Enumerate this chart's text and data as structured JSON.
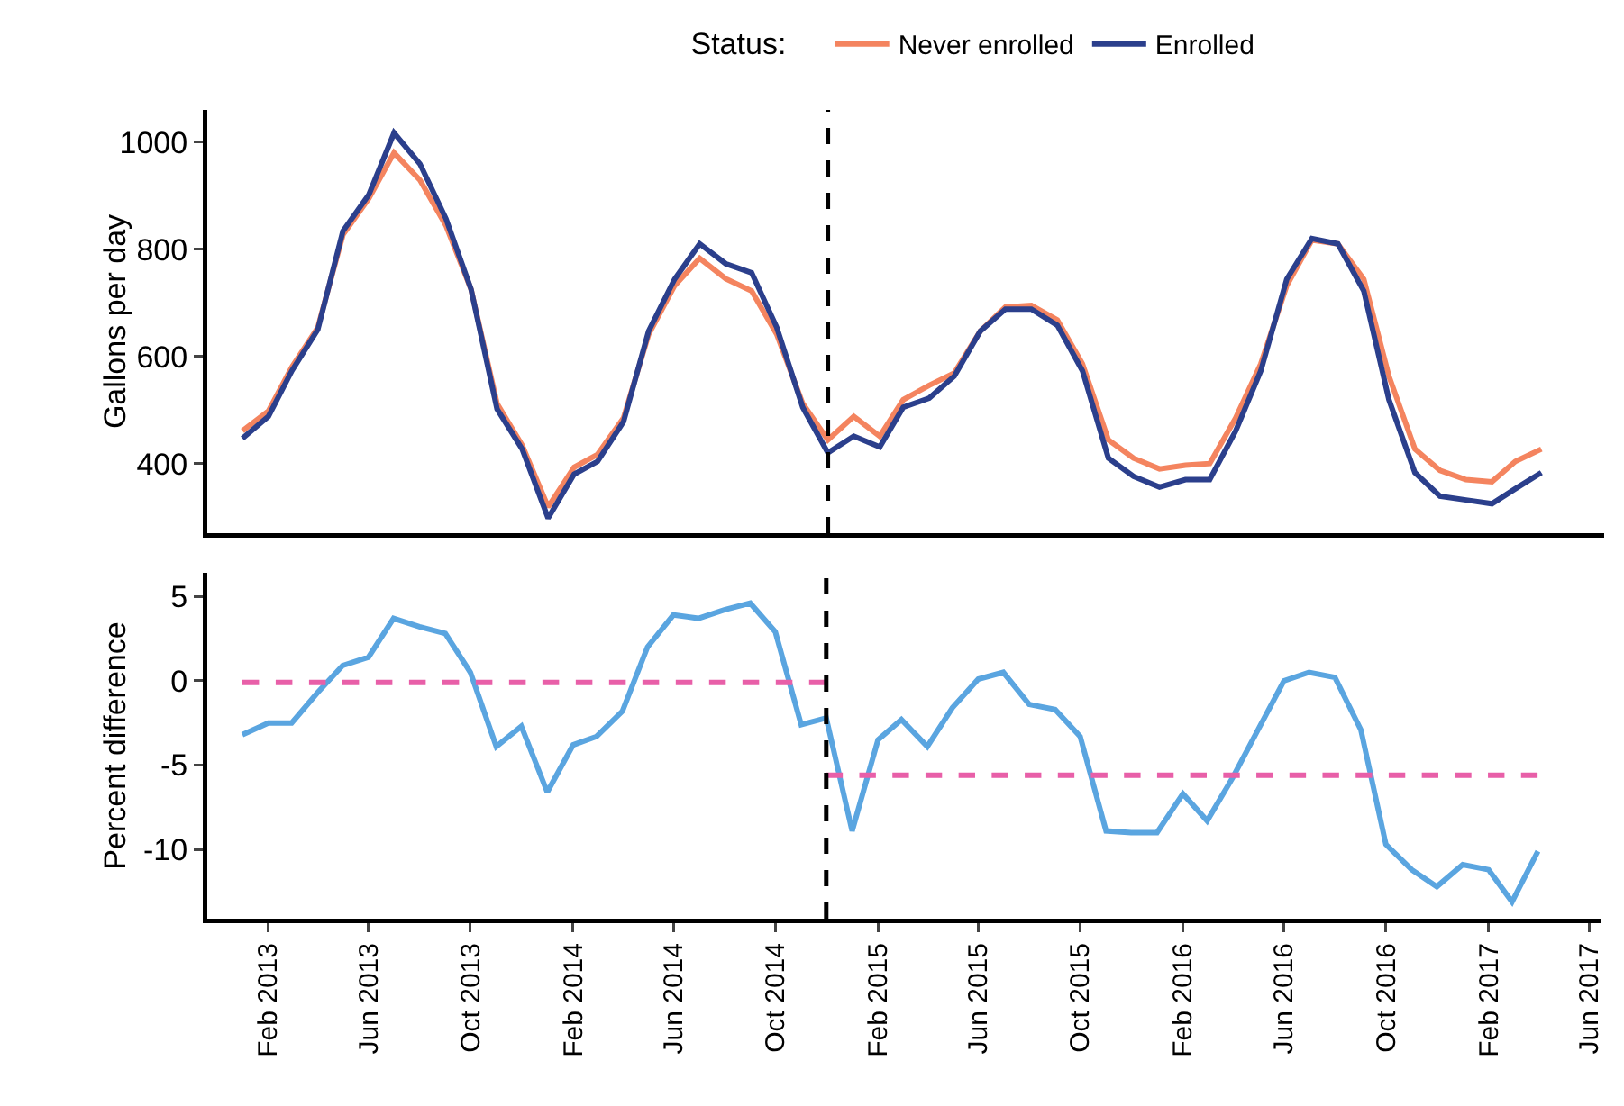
{
  "chart_data": [
    {
      "type": "line",
      "ylabel": "Gallons per day",
      "legend_title": "Status:",
      "legend": "top",
      "x": [
        "2013-01",
        "2013-02",
        "2013-03",
        "2013-04",
        "2013-05",
        "2013-06",
        "2013-07",
        "2013-08",
        "2013-09",
        "2013-10",
        "2013-11",
        "2013-12",
        "2014-01",
        "2014-02",
        "2014-03",
        "2014-04",
        "2014-05",
        "2014-06",
        "2014-07",
        "2014-08",
        "2014-09",
        "2014-10",
        "2014-11",
        "2014-12",
        "2015-01",
        "2015-02",
        "2015-03",
        "2015-04",
        "2015-05",
        "2015-06",
        "2015-07",
        "2015-08",
        "2015-09",
        "2015-10",
        "2015-11",
        "2015-12",
        "2016-01",
        "2016-02",
        "2016-03",
        "2016-04",
        "2016-05",
        "2016-06",
        "2016-07",
        "2016-08",
        "2016-09",
        "2016-10",
        "2016-11",
        "2016-12",
        "2017-01",
        "2017-02",
        "2017-03",
        "2017-04"
      ],
      "series": [
        {
          "name": "Never enrolled",
          "color": "#f4845f",
          "values": [
            461,
            498,
            580,
            654,
            827,
            895,
            980,
            929,
            844,
            725,
            512,
            434,
            319,
            393,
            417,
            485,
            641,
            732,
            783,
            745,
            722,
            641,
            512,
            444,
            488,
            451,
            519,
            546,
            569,
            647,
            692,
            695,
            668,
            586,
            444,
            410,
            390,
            397,
            400,
            485,
            586,
            732,
            817,
            810,
            744,
            563,
            427,
            387,
            370,
            366,
            404,
            427
          ]
        },
        {
          "name": "Enrolled",
          "color": "#2b3f8c",
          "values": [
            447,
            488,
            573,
            650,
            834,
            902,
            1017,
            959,
            857,
            725,
            502,
            427,
            298,
            380,
            404,
            478,
            647,
            744,
            810,
            773,
            756,
            654,
            505,
            420,
            451,
            431,
            505,
            522,
            563,
            647,
            688,
            688,
            658,
            573,
            410,
            376,
            356,
            370,
            370,
            461,
            573,
            744,
            820,
            810,
            722,
            519,
            383,
            339,
            332,
            325,
            353,
            383
          ]
        }
      ],
      "xlim": [
        "2012-11-20",
        "2017-06-15"
      ],
      "ylim": [
        270,
        1060
      ],
      "yticks": [
        400,
        600,
        800,
        1000
      ],
      "tick_labels": "y",
      "ref_lines": [
        {
          "axis": "x",
          "value": "2014-12-01",
          "color": "#000000",
          "line_style": "dashed"
        }
      ]
    },
    {
      "type": "line",
      "ylabel": "Percent difference",
      "x": [
        "2013-01",
        "2013-02",
        "2013-03",
        "2013-04",
        "2013-05",
        "2013-06",
        "2013-07",
        "2013-08",
        "2013-09",
        "2013-10",
        "2013-11",
        "2013-12",
        "2014-01",
        "2014-02",
        "2014-03",
        "2014-04",
        "2014-05",
        "2014-06",
        "2014-07",
        "2014-08",
        "2014-09",
        "2014-10",
        "2014-11",
        "2014-12",
        "2015-01",
        "2015-02",
        "2015-03",
        "2015-04",
        "2015-05",
        "2015-06",
        "2015-07",
        "2015-08",
        "2015-09",
        "2015-10",
        "2015-11",
        "2015-12",
        "2016-01",
        "2016-02",
        "2016-03",
        "2016-04",
        "2016-05",
        "2016-06",
        "2016-07",
        "2016-08",
        "2016-09",
        "2016-10",
        "2016-11",
        "2016-12",
        "2017-01",
        "2017-02",
        "2017-03",
        "2017-04"
      ],
      "series": [
        {
          "color": "#5aa5e0",
          "values": [
            -3.2,
            -2.5,
            -2.5,
            -0.7,
            0.9,
            1.4,
            3.7,
            3.2,
            2.8,
            0.5,
            -3.9,
            -2.7,
            -6.6,
            -3.8,
            -3.3,
            -1.8,
            2.0,
            3.9,
            3.7,
            4.2,
            4.6,
            2.9,
            -2.6,
            -2.2,
            -8.9,
            -3.5,
            -2.3,
            -3.9,
            -1.6,
            0.1,
            0.5,
            -1.4,
            -1.7,
            -3.3,
            -8.9,
            -9.0,
            -9.0,
            -6.7,
            -8.3,
            -5.7,
            -2.9,
            0.0,
            0.5,
            0.2,
            -2.9,
            -9.7,
            -11.2,
            -12.2,
            -10.9,
            -11.2,
            -13.1,
            -10.1
          ]
        },
        {
          "color": "#e85fa8",
          "line_style": "dashed",
          "x": [
            "2013-01",
            "2014-12"
          ],
          "values": [
            -0.1,
            -0.1
          ]
        },
        {
          "color": "#e85fa8",
          "line_style": "dashed",
          "x": [
            "2014-12",
            "2017-04"
          ],
          "values": [
            -5.6,
            -5.6
          ]
        }
      ],
      "xlim": [
        "2012-11-20",
        "2017-06-15"
      ],
      "ylim": [
        -14.1,
        6.4
      ],
      "yticks": [
        -10,
        -5,
        0,
        5
      ],
      "xticks": [
        {
          "value": "2013-02-01",
          "label": "Feb 2013"
        },
        {
          "value": "2013-06-01",
          "label": "Jun 2013"
        },
        {
          "value": "2013-10-01",
          "label": "Oct 2013"
        },
        {
          "value": "2014-02-01",
          "label": "Feb 2014"
        },
        {
          "value": "2014-06-01",
          "label": "Jun 2014"
        },
        {
          "value": "2014-10-01",
          "label": "Oct 2014"
        },
        {
          "value": "2015-02-01",
          "label": "Feb 2015"
        },
        {
          "value": "2015-06-01",
          "label": "Jun 2015"
        },
        {
          "value": "2015-10-01",
          "label": "Oct 2015"
        },
        {
          "value": "2016-02-01",
          "label": "Feb 2016"
        },
        {
          "value": "2016-06-01",
          "label": "Jun 2016"
        },
        {
          "value": "2016-10-01",
          "label": "Oct 2016"
        },
        {
          "value": "2017-02-01",
          "label": "Feb 2017"
        },
        {
          "value": "2017-06-01",
          "label": "Jun 2017"
        }
      ],
      "ref_lines": [
        {
          "axis": "x",
          "value": "2014-12-01",
          "color": "#000000",
          "line_style": "dashed"
        }
      ]
    }
  ]
}
